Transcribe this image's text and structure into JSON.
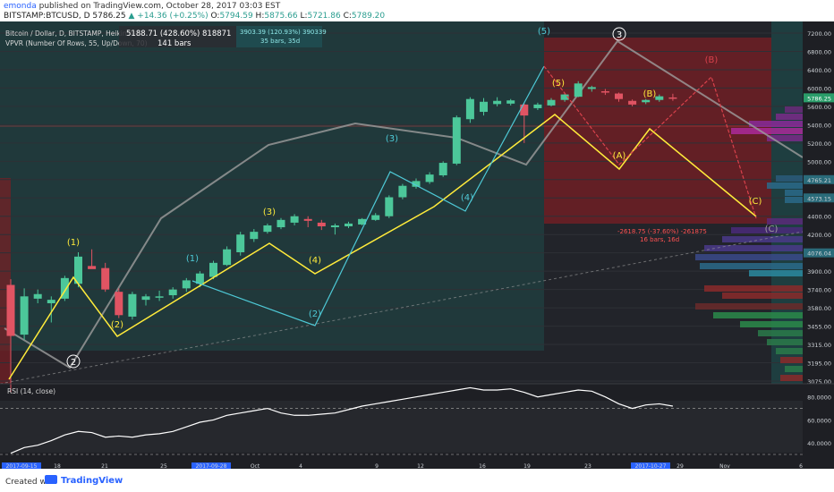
{
  "header": {
    "user": "emonda",
    "published": "published on TradingView.com, October 28, 2017 03:03 EST",
    "symbol": "BITSTAMP:BTCUSD, D",
    "last": "5786.25",
    "change": "▲ +14.36 (+0.25%)",
    "o_label": "O:",
    "o": "5794.59",
    "h_label": "H:",
    "h": "5875.66",
    "l_label": "L:",
    "l": "5721.86",
    "c_label": "C:",
    "c": "5789.20"
  },
  "legend": {
    "series_title": "Bitcoin / Dollar, D, BITSTAMP, Heikin Ashi",
    "indicator": "VPVR (Number Of Rows, 55, Up/Down, 70)",
    "measure1_line1": "5188.71 (428.60%) 818871",
    "measure1_line2": "141 bars",
    "measure2_line1": "3903.39 (120.93%) 390339",
    "measure2_line2": "35 bars, 35d",
    "measure3_line1": "-2618.75 (-37.60%) -261875",
    "measure3_line2": "16 bars, 16d"
  },
  "footer": {
    "created_with": "Created with",
    "brand": "TradingView"
  },
  "colors": {
    "background": "#1e1f24",
    "up": "#4cc79a",
    "down": "#e05463",
    "wave": "#ffeb3b",
    "wave_teal": "#4ec9d6",
    "wave_red": "#d9424c",
    "trend": "#9e9e9e",
    "rsi": "#ffffff"
  },
  "chart_data": [
    {
      "type": "candlestick",
      "title": "Bitcoin / Dollar, D, BITSTAMP, Heikin Ashi",
      "y_axis_ticks": [
        3075,
        3195,
        3315,
        3455,
        3580,
        3740,
        3900,
        4076,
        4200,
        4400,
        4573,
        4765,
        5000,
        5200,
        5400,
        5600,
        6000,
        6400,
        6800,
        7200
      ],
      "y_axis_labels": [
        "3075.00",
        "3195.00",
        "3315.00",
        "3455.00",
        "3580.00",
        "3740.00",
        "3900.00",
        "4076.04",
        "4200.00",
        "4400.00",
        "4573.15",
        "4765.21",
        "5000.00",
        "5200.00",
        "5400.00",
        "5600.00",
        "6000.00",
        "6400.00",
        "6800.00",
        "7200.00"
      ],
      "x_axis_labels": [
        "2017-09-15",
        "18",
        "21",
        "25",
        "2017-09-28",
        "Oct",
        "4",
        "9",
        "12",
        "16",
        "19",
        "23",
        "2017-10-27",
        "29",
        "Nov",
        "6"
      ],
      "candles": [
        {
          "date": "2017-09-15",
          "o": 3780,
          "h": 3830,
          "l": 3000,
          "c": 3380
        },
        {
          "date": "2017-09-16",
          "o": 3390,
          "h": 3750,
          "l": 3350,
          "c": 3680
        },
        {
          "date": "2017-09-17",
          "o": 3660,
          "h": 3740,
          "l": 3620,
          "c": 3700
        },
        {
          "date": "2017-09-18",
          "o": 3620,
          "h": 3680,
          "l": 3480,
          "c": 3650
        },
        {
          "date": "2017-09-19",
          "o": 3660,
          "h": 3860,
          "l": 3640,
          "c": 3840
        },
        {
          "date": "2017-09-20",
          "o": 3790,
          "h": 4080,
          "l": 3760,
          "c": 4040
        },
        {
          "date": "2017-09-21",
          "o": 3950,
          "h": 4100,
          "l": 3940,
          "c": 3920
        },
        {
          "date": "2017-09-22",
          "o": 3930,
          "h": 3980,
          "l": 3720,
          "c": 3740
        },
        {
          "date": "2017-09-23",
          "o": 3720,
          "h": 3750,
          "l": 3510,
          "c": 3530
        },
        {
          "date": "2017-09-24",
          "o": 3520,
          "h": 3720,
          "l": 3500,
          "c": 3700
        },
        {
          "date": "2017-09-25",
          "o": 3650,
          "h": 3700,
          "l": 3600,
          "c": 3680
        },
        {
          "date": "2017-09-26",
          "o": 3670,
          "h": 3730,
          "l": 3640,
          "c": 3680
        },
        {
          "date": "2017-09-27",
          "o": 3690,
          "h": 3760,
          "l": 3660,
          "c": 3740
        },
        {
          "date": "2017-09-28",
          "o": 3750,
          "h": 3840,
          "l": 3720,
          "c": 3820
        },
        {
          "date": "2017-09-29",
          "o": 3790,
          "h": 3900,
          "l": 3760,
          "c": 3880
        },
        {
          "date": "2017-09-30",
          "o": 3850,
          "h": 4000,
          "l": 3830,
          "c": 3980
        },
        {
          "date": "2017-10-01",
          "o": 3960,
          "h": 4120,
          "l": 3950,
          "c": 4100
        },
        {
          "date": "2017-10-02",
          "o": 4080,
          "h": 4230,
          "l": 4050,
          "c": 4200
        },
        {
          "date": "2017-10-03",
          "o": 4170,
          "h": 4260,
          "l": 4150,
          "c": 4230
        },
        {
          "date": "2017-10-04",
          "o": 4230,
          "h": 4320,
          "l": 4210,
          "c": 4300
        },
        {
          "date": "2017-10-05",
          "o": 4280,
          "h": 4380,
          "l": 4260,
          "c": 4360
        },
        {
          "date": "2017-10-06",
          "o": 4330,
          "h": 4420,
          "l": 4300,
          "c": 4400
        },
        {
          "date": "2017-10-07",
          "o": 4370,
          "h": 4400,
          "l": 4280,
          "c": 4350
        },
        {
          "date": "2017-10-08",
          "o": 4330,
          "h": 4360,
          "l": 4250,
          "c": 4290
        },
        {
          "date": "2017-10-09",
          "o": 4280,
          "h": 4320,
          "l": 4200,
          "c": 4300
        },
        {
          "date": "2017-10-10",
          "o": 4290,
          "h": 4340,
          "l": 4270,
          "c": 4320
        },
        {
          "date": "2017-10-11",
          "o": 4310,
          "h": 4380,
          "l": 4300,
          "c": 4370
        },
        {
          "date": "2017-10-12",
          "o": 4360,
          "h": 4430,
          "l": 4350,
          "c": 4410
        },
        {
          "date": "2017-10-13",
          "o": 4400,
          "h": 4600,
          "l": 4380,
          "c": 4580
        },
        {
          "date": "2017-10-14",
          "o": 4580,
          "h": 4720,
          "l": 4560,
          "c": 4700
        },
        {
          "date": "2017-10-15",
          "o": 4690,
          "h": 4780,
          "l": 4670,
          "c": 4750
        },
        {
          "date": "2017-10-16",
          "o": 4740,
          "h": 4860,
          "l": 4720,
          "c": 4830
        },
        {
          "date": "2017-10-17",
          "o": 4820,
          "h": 5000,
          "l": 4800,
          "c": 4980
        },
        {
          "date": "2017-10-18",
          "o": 4970,
          "h": 5500,
          "l": 4950,
          "c": 5480
        },
        {
          "date": "2017-10-19",
          "o": 5460,
          "h": 5800,
          "l": 5420,
          "c": 5760
        },
        {
          "date": "2017-10-20",
          "o": 5540,
          "h": 5780,
          "l": 5500,
          "c": 5700
        },
        {
          "date": "2017-10-21",
          "o": 5650,
          "h": 5800,
          "l": 5600,
          "c": 5720
        },
        {
          "date": "2017-10-22",
          "o": 5660,
          "h": 5760,
          "l": 5620,
          "c": 5730
        },
        {
          "date": "2017-10-23",
          "o": 5640,
          "h": 5660,
          "l": 5200,
          "c": 5500
        },
        {
          "date": "2017-10-24",
          "o": 5580,
          "h": 5680,
          "l": 5560,
          "c": 5640
        },
        {
          "date": "2017-10-25",
          "o": 5620,
          "h": 5780,
          "l": 5600,
          "c": 5740
        },
        {
          "date": "2017-10-26",
          "o": 5740,
          "h": 5900,
          "l": 5700,
          "c": 5860
        },
        {
          "date": "2017-10-27",
          "o": 5810,
          "h": 6150,
          "l": 5800,
          "c": 6100
        },
        {
          "date": "2017-10-28",
          "o": 5980,
          "h": 6050,
          "l": 5920,
          "c": 6020
        },
        {
          "date": "2017-10-29",
          "o": 5930,
          "h": 5980,
          "l": 5850,
          "c": 5900
        },
        {
          "date": "2017-10-30",
          "o": 5880,
          "h": 5900,
          "l": 5700,
          "c": 5760
        },
        {
          "date": "2017-10-31",
          "o": 5720,
          "h": 5750,
          "l": 5600,
          "c": 5640
        },
        {
          "date": "2017-11-01",
          "o": 5690,
          "h": 5760,
          "l": 5650,
          "c": 5740
        },
        {
          "date": "2017-11-02",
          "o": 5740,
          "h": 5860,
          "l": 5700,
          "c": 5820
        },
        {
          "date": "2017-11-03",
          "o": 5794.59,
          "h": 5875.66,
          "l": 5721.86,
          "c": 5789.2
        }
      ],
      "price_marker": {
        "value": 5786.25,
        "label": "5786.25"
      }
    },
    {
      "type": "line",
      "title": "RSI (14, close)",
      "y_axis_labels": [
        "80.0000",
        "60.0000",
        "40.0000"
      ],
      "overbought": 70,
      "oversold": 30,
      "values": [
        31,
        36,
        38,
        42,
        47,
        50,
        49,
        45,
        46,
        45,
        47,
        48,
        50,
        54,
        58,
        60,
        64,
        66,
        68,
        70,
        66,
        64,
        64,
        65,
        66,
        69,
        72,
        74,
        76,
        78,
        80,
        82,
        84,
        86,
        88,
        86,
        86,
        87,
        84,
        80,
        82,
        84,
        86,
        85,
        80,
        74,
        70,
        73,
        74,
        72
      ]
    }
  ]
}
